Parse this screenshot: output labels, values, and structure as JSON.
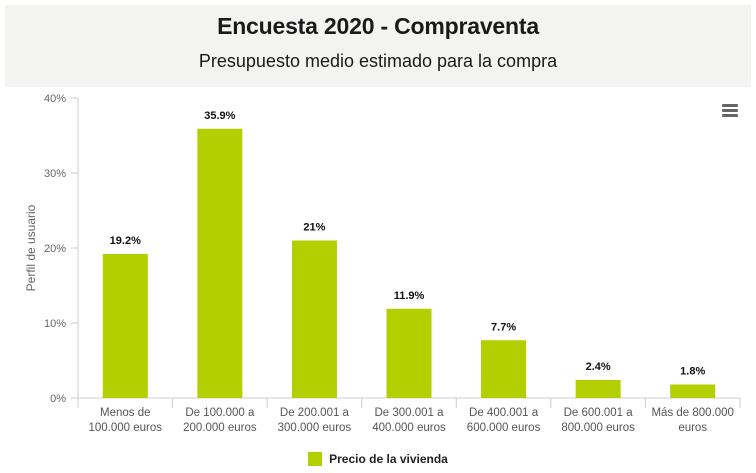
{
  "header": {
    "title": "Encuesta 2020 - Compraventa",
    "subtitle": "Presupuesto medio estimado para la compra"
  },
  "menu": {
    "icon": "hamburger-menu-icon"
  },
  "colors": {
    "bar": "#b3cf00",
    "header_bg": "#f3f3f2",
    "axis": "#cccccc"
  },
  "chart_data": {
    "type": "bar",
    "title": "Encuesta 2020 - Compraventa",
    "subtitle": "Presupuesto medio estimado para la compra",
    "xlabel": "",
    "ylabel": "Perfil de usuario",
    "ylim": [
      0,
      40
    ],
    "yticks": [
      0,
      10,
      20,
      30,
      40
    ],
    "ytick_labels": [
      "0%",
      "10%",
      "20%",
      "30%",
      "40%"
    ],
    "grid": false,
    "legend_position": "bottom",
    "categories": [
      [
        "Menos de",
        "100.000 euros"
      ],
      [
        "De 100.000 a",
        "200.000 euros"
      ],
      [
        "De 200.001 a",
        "300.000 euros"
      ],
      [
        "De 300.001 a",
        "400.000 euros"
      ],
      [
        "De 400.001 a",
        "600.000 euros"
      ],
      [
        "De 600.001 a",
        "800.000 euros"
      ],
      [
        "Más de 800.000",
        "euros"
      ]
    ],
    "series": [
      {
        "name": "Precio de la vivienda",
        "values": [
          19.2,
          35.9,
          21,
          11.9,
          7.7,
          2.4,
          1.8
        ],
        "labels": [
          "19.2%",
          "35.9%",
          "21%",
          "11.9%",
          "7.7%",
          "2.4%",
          "1.8%"
        ]
      }
    ]
  }
}
